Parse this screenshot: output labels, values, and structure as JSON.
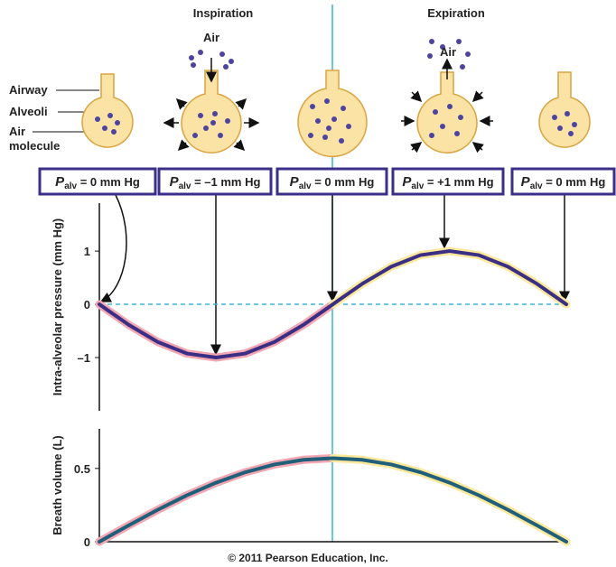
{
  "headings": {
    "inspiration": "Inspiration",
    "expiration": "Expiration"
  },
  "labels": {
    "airway": "Airway",
    "alveoli": "Alveoli",
    "air_molecule": [
      "Air",
      "molecule"
    ],
    "air_in": "Air",
    "air_out": "Air"
  },
  "boxes": [
    {
      "symbol": "P",
      "subscript": "alv",
      "text": " = 0 mm Hg"
    },
    {
      "symbol": "P",
      "subscript": "alv",
      "text": " = –1 mm Hg"
    },
    {
      "symbol": "P",
      "subscript": "alv",
      "text": " = 0 mm Hg"
    },
    {
      "symbol": "P",
      "subscript": "alv",
      "text": " = +1 mm Hg"
    },
    {
      "symbol": "P",
      "subscript": "alv",
      "text": " = 0 mm Hg"
    }
  ],
  "chart_data": [
    {
      "type": "line",
      "y_label": "Intra-alveolar pressure (mm Hg)",
      "x": [
        0,
        0.25,
        0.5,
        0.75,
        1,
        1.25,
        1.5,
        1.75,
        2,
        2.25,
        2.5,
        2.75,
        3,
        3.25,
        3.5,
        3.75,
        4
      ],
      "xlim": [
        0,
        4
      ],
      "ylim": [
        -2,
        1.9
      ],
      "yticks": [
        {
          "value": -1,
          "label": "–1"
        },
        0,
        1
      ],
      "zero_line": true,
      "series": [
        {
          "color": "#3a2f85",
          "values": [
            0,
            -0.383,
            -0.707,
            -0.924,
            -1,
            -0.924,
            -0.707,
            -0.383,
            0,
            0.383,
            0.707,
            0.924,
            1,
            0.924,
            0.707,
            0.383,
            0
          ]
        }
      ]
    },
    {
      "type": "line",
      "y_label": "Breath volume (L)",
      "x": [
        0,
        0.25,
        0.5,
        0.75,
        1,
        1.25,
        1.5,
        1.75,
        2,
        2.25,
        2.5,
        2.75,
        3,
        3.25,
        3.5,
        3.75,
        4
      ],
      "xlim": [
        0,
        4
      ],
      "ylim": [
        0,
        0.77
      ],
      "yticks": [
        0,
        0.5
      ],
      "zero_line": false,
      "series": [
        {
          "color": "#1f5f7a",
          "values": [
            0,
            0.111,
            0.218,
            0.317,
            0.403,
            0.474,
            0.527,
            0.559,
            0.57,
            0.559,
            0.527,
            0.474,
            0.403,
            0.317,
            0.218,
            0.111,
            0
          ]
        }
      ]
    }
  ],
  "phase_colors": {
    "inspiration": "#f2a7b2",
    "expiration": "#fbe89a"
  },
  "copyright": "© 2011 Pearson Education, Inc."
}
